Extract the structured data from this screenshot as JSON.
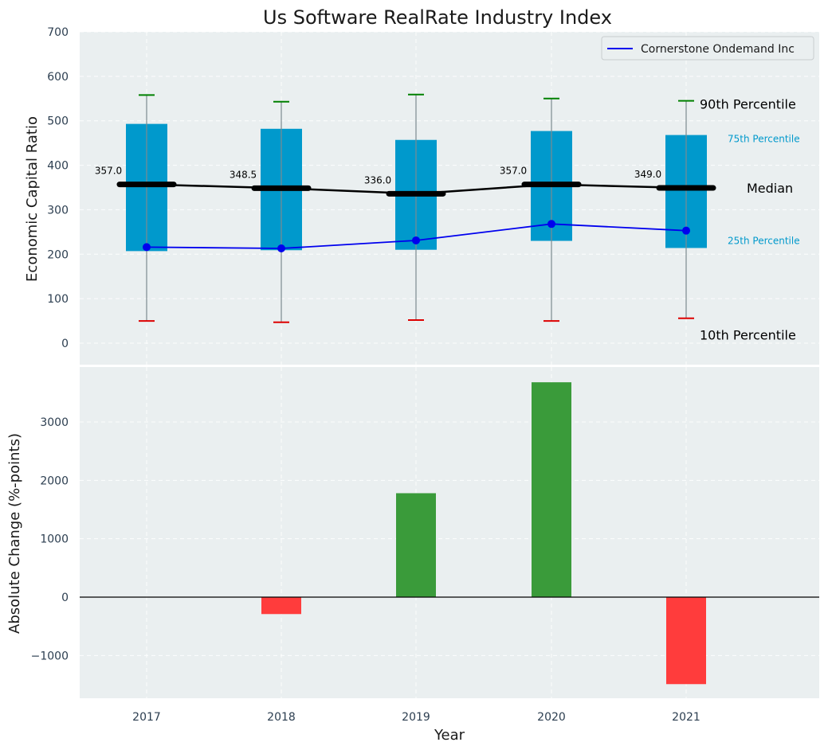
{
  "chart_data": [
    {
      "type": "box",
      "title": "Us Software RealRate Industry Index",
      "ylabel": "Economic Capital Ratio",
      "ylim": [
        -50,
        700
      ],
      "yticks": [
        0,
        100,
        200,
        300,
        400,
        500,
        600,
        700
      ],
      "categories": [
        "2017",
        "2018",
        "2019",
        "2020",
        "2021"
      ],
      "p10": [
        50,
        47,
        52,
        50,
        56
      ],
      "p25": [
        207,
        209,
        210,
        230,
        214
      ],
      "median": [
        357.0,
        348.5,
        336.0,
        357.0,
        349.0
      ],
      "median_labels": [
        "357.0",
        "348.5",
        "336.0",
        "357.0",
        "349.0"
      ],
      "p75": [
        493,
        482,
        457,
        477,
        468
      ],
      "p90": [
        558,
        543,
        559,
        550,
        545
      ],
      "series": [
        {
          "name": "Cornerstone Ondemand Inc",
          "values": [
            216,
            213,
            231,
            268,
            253
          ],
          "color": "#0000ee"
        }
      ],
      "annotations": {
        "p90": "90th Percentile",
        "p75": "75th Percentile",
        "median": "Median",
        "p25": "25th Percentile",
        "p10": "10th Percentile"
      },
      "colors": {
        "box": "#0099cc",
        "median": "#000000",
        "whisker_top": "#008000",
        "whisker_bottom": "#dd0000",
        "background": "#eaeff0"
      },
      "grid": true,
      "legend_position": "top-right"
    },
    {
      "type": "bar",
      "ylabel": "Absolute Change (%-points)",
      "xlabel": "Year",
      "ylim": [
        -1750,
        3900
      ],
      "yticks": [
        -1000,
        0,
        1000,
        2000,
        3000
      ],
      "ytick_labels": [
        "−1000",
        "0",
        "1000",
        "2000",
        "3000"
      ],
      "categories": [
        "2017",
        "2018",
        "2019",
        "2020",
        "2021"
      ],
      "values": [
        0,
        -290,
        1780,
        3680,
        -1490
      ],
      "colors": {
        "positive": "#3a9b3a",
        "negative": "#ff3c3c"
      },
      "grid": true
    }
  ]
}
